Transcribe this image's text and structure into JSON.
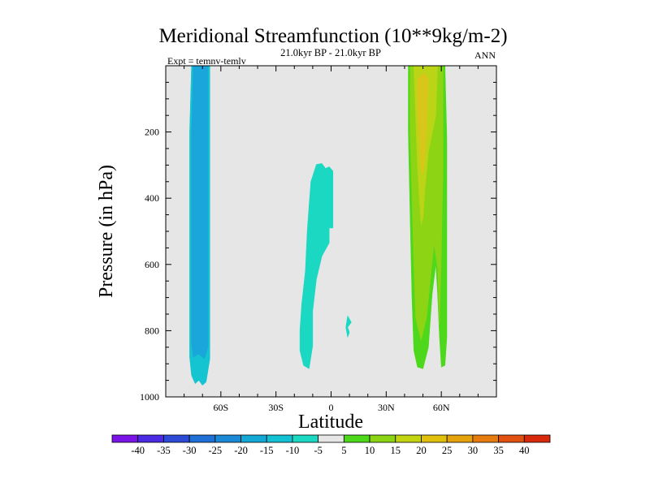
{
  "title": "Meridional Streamfunction (10**9kg/m-2)",
  "subtitle": "21.0kyr BP - 21.0kyr BP",
  "expt_label": "Expt = temnv-temlv",
  "season_label": "ANN",
  "chart_data": {
    "type": "contour",
    "xlabel": "Latitude",
    "ylabel": "Pressure (in hPa)",
    "xlim": [
      -90,
      90
    ],
    "ylim": [
      1000,
      0
    ],
    "y_inverted": true,
    "x_ticks": [
      {
        "value": -60,
        "label": "60S"
      },
      {
        "value": -30,
        "label": "30S"
      },
      {
        "value": 0,
        "label": "0"
      },
      {
        "value": 30,
        "label": "30N"
      },
      {
        "value": 60,
        "label": "60N"
      }
    ],
    "y_ticks": [
      {
        "value": 200,
        "label": "200"
      },
      {
        "value": 400,
        "label": "400"
      },
      {
        "value": 600,
        "label": "600"
      },
      {
        "value": 800,
        "label": "800"
      },
      {
        "value": 1000,
        "label": "1000"
      }
    ],
    "colorbar": {
      "levels": [
        "-40",
        "-35",
        "-30",
        "-25",
        "-20",
        "-15",
        "-10",
        "-5",
        "5",
        "10",
        "15",
        "20",
        "25",
        "30",
        "35",
        "40"
      ],
      "colors": [
        "#7a14e6",
        "#4a2ae2",
        "#2d4ad6",
        "#1e6fd6",
        "#1a8ad6",
        "#14a8d6",
        "#12c2d4",
        "#1ad8c2",
        "#e6e6e6",
        "#4ed81c",
        "#8ad414",
        "#c2d410",
        "#e0c00a",
        "#e6a20a",
        "#e67c10",
        "#e05010",
        "#d82a0a"
      ]
    },
    "background_color": "#e6e6e6",
    "regions": [
      {
        "name": "southern-cell-outer",
        "level": "-15 to -10",
        "color": "#14c4d0",
        "points": [
          [
            -76,
            0
          ],
          [
            -66,
            0
          ],
          [
            -66,
            885
          ],
          [
            -68,
            955
          ],
          [
            -70,
            965
          ],
          [
            -72,
            950
          ],
          [
            -74,
            960
          ],
          [
            -76,
            935
          ],
          [
            -77,
            880
          ],
          [
            -77,
            200
          ]
        ]
      },
      {
        "name": "southern-cell-core",
        "level": "-20 to -15",
        "color": "#1aa6da",
        "points": [
          [
            -75,
            0
          ],
          [
            -67,
            0
          ],
          [
            -67,
            850
          ],
          [
            -69,
            885
          ],
          [
            -72,
            870
          ],
          [
            -75,
            880
          ],
          [
            -76,
            840
          ],
          [
            -76,
            200
          ]
        ]
      },
      {
        "name": "equatorial-cell",
        "level": "-10 to -5",
        "color": "#1ad8c2",
        "points": [
          [
            -8,
            298
          ],
          [
            -5,
            295
          ],
          [
            -3,
            310
          ],
          [
            -1,
            305
          ],
          [
            1,
            318
          ],
          [
            1,
            490
          ],
          [
            -1,
            490
          ],
          [
            -1,
            535
          ],
          [
            -5,
            575
          ],
          [
            -8,
            645
          ],
          [
            -10,
            740
          ],
          [
            -10,
            845
          ],
          [
            -12,
            915
          ],
          [
            -15,
            905
          ],
          [
            -17,
            860
          ],
          [
            -17,
            800
          ],
          [
            -16,
            720
          ],
          [
            -14,
            620
          ],
          [
            -13,
            500
          ],
          [
            -12,
            420
          ],
          [
            -11,
            350
          ]
        ]
      },
      {
        "name": "equatorial-patch",
        "level": "-10 to -5",
        "color": "#1ad8c2",
        "points": [
          [
            9,
            755
          ],
          [
            11,
            775
          ],
          [
            9,
            790
          ],
          [
            10,
            805
          ],
          [
            9,
            820
          ],
          [
            8,
            790
          ]
        ]
      },
      {
        "name": "northern-cell-outer",
        "level": "5 to 10",
        "color": "#4ed81c",
        "points": [
          [
            42,
            0
          ],
          [
            62,
            0
          ],
          [
            63,
            220
          ],
          [
            63,
            600
          ],
          [
            63,
            820
          ],
          [
            62,
            905
          ],
          [
            60,
            910
          ],
          [
            59,
            820
          ],
          [
            58,
            690
          ],
          [
            57,
            600
          ],
          [
            55,
            690
          ],
          [
            53,
            850
          ],
          [
            50,
            915
          ],
          [
            47,
            910
          ],
          [
            45,
            860
          ],
          [
            44,
            700
          ],
          [
            43,
            450
          ],
          [
            42,
            200
          ]
        ]
      },
      {
        "name": "northern-cell-mid",
        "level": "10 to 15",
        "color": "#8cd414",
        "points": [
          [
            43,
            0
          ],
          [
            61,
            0
          ],
          [
            61,
            300
          ],
          [
            60,
            570
          ],
          [
            59,
            780
          ],
          [
            58,
            610
          ],
          [
            56,
            540
          ],
          [
            54,
            650
          ],
          [
            52,
            760
          ],
          [
            49,
            830
          ],
          [
            46,
            760
          ],
          [
            45,
            600
          ],
          [
            44,
            400
          ],
          [
            43,
            200
          ]
        ]
      },
      {
        "name": "northern-cell-core",
        "level": "15 to 20",
        "color": "#bcd416",
        "points": [
          [
            45,
            0
          ],
          [
            58,
            0
          ],
          [
            57,
            150
          ],
          [
            53,
            260
          ],
          [
            51,
            380
          ],
          [
            50,
            460
          ],
          [
            49,
            480
          ],
          [
            48,
            400
          ],
          [
            47,
            300
          ],
          [
            46,
            150
          ]
        ]
      },
      {
        "name": "northern-cell-peak",
        "level": "20 to 25",
        "color": "#d8c61a",
        "points": [
          [
            47,
            40
          ],
          [
            51,
            20
          ],
          [
            53,
            40
          ],
          [
            52,
            200
          ],
          [
            51,
            280
          ],
          [
            50,
            330
          ],
          [
            49,
            310
          ],
          [
            48,
            220
          ],
          [
            47,
            120
          ]
        ]
      }
    ]
  }
}
